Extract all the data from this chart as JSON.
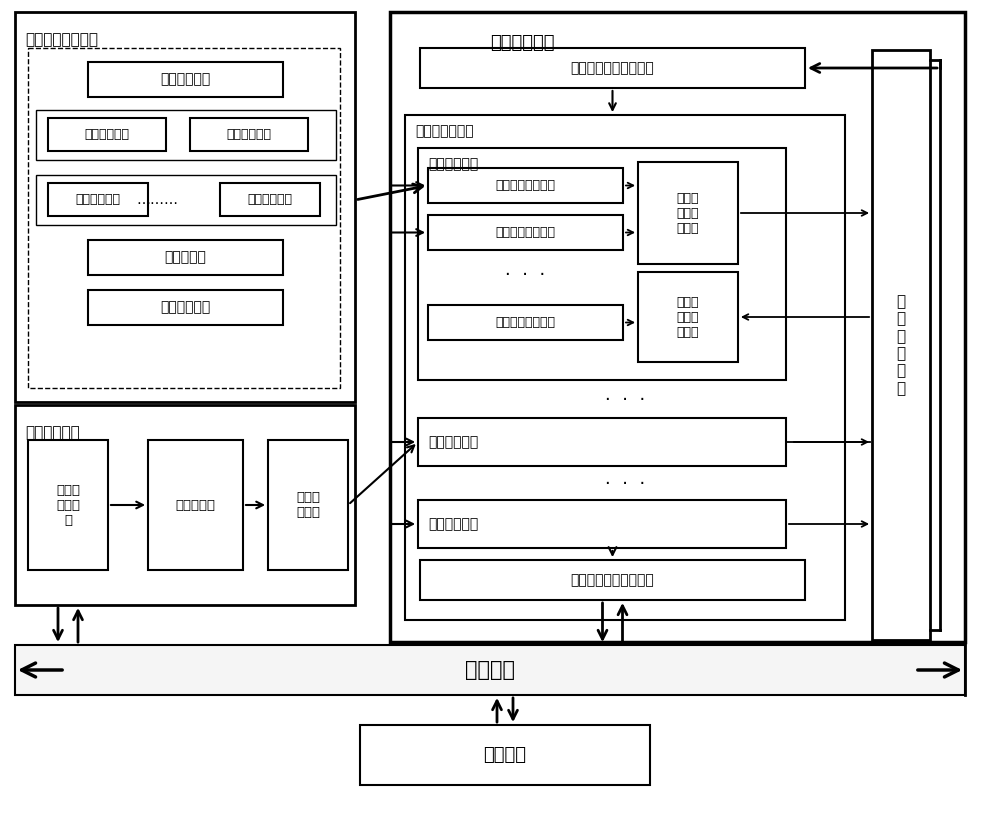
{
  "bg_color": "#ffffff",
  "fig_width": 10.0,
  "fig_height": 8.3,
  "labels": {
    "reconfigurable_processor": "可重构处理器",
    "input_fifo": "输入先入先出寄存器组",
    "reconfigurable_array": "可重构计算阵列",
    "array_block": "可重构阵列块",
    "array_row": "可重构阵列运算行",
    "write_selector": "写端口\n运算行\n选择器",
    "read_selector": "读端口\n运算行\n选择器",
    "output_fifo": "输出先入先出寄存器组",
    "general_reg": "通\n用\n寄\n存\n器\n堆",
    "system_bus": "系统总线",
    "microprocessor": "微处理器",
    "config_module": "配制控制模块",
    "config_interface": "配置与\n控制接\n口",
    "config_memory": "配置存储器",
    "config_parse": "配置解\n析模块",
    "row_detail_label": "可重构阵列运算行",
    "data_input": "数据输入单元",
    "byte_subst": "字节置换网络",
    "bit_subst": "比特置换网络",
    "alu1": "算术逻辑单元",
    "alu2": "算术逻辑单元",
    "lookup": "查找表单元",
    "data_output": "数据输出单元",
    "dots_h": "………",
    "dot3": "·\n·\n·",
    "dot3h": "· · ·"
  }
}
